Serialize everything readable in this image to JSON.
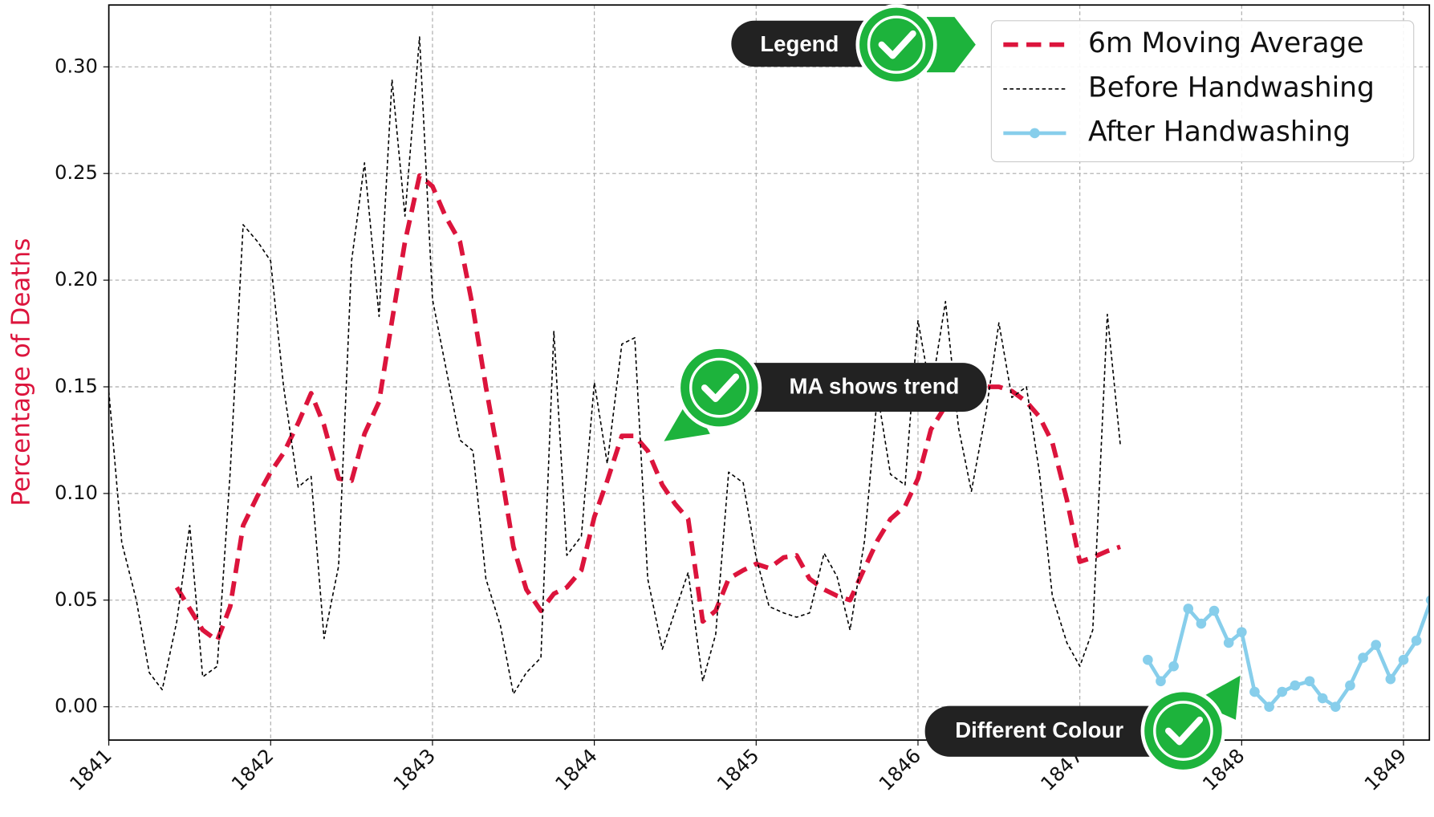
{
  "chart_data": {
    "type": "line",
    "ylabel": "Percentage of Deaths",
    "xlim": [
      1841.0,
      1849.16
    ],
    "ylim": [
      -0.0156,
      0.329
    ],
    "xticks": [
      1841,
      1842,
      1843,
      1844,
      1845,
      1846,
      1847,
      1848,
      1849
    ],
    "yticks": [
      {
        "value": 0,
        "label": "0.00"
      },
      {
        "value": 0.05,
        "label": "0.05"
      },
      {
        "value": 0.1,
        "label": "0.10"
      },
      {
        "value": 0.15,
        "label": "0.15"
      },
      {
        "value": 0.2,
        "label": "0.20"
      },
      {
        "value": 0.25,
        "label": "0.25"
      },
      {
        "value": 0.3,
        "label": "0.30"
      }
    ],
    "grid": true,
    "legend": "upper right",
    "series": [
      {
        "name": "6m Moving Average",
        "color": "#dc143c",
        "style": "dashed",
        "x": [
          1841.42,
          1841.5,
          1841.58,
          1841.67,
          1841.75,
          1841.83,
          1841.92,
          1842.0,
          1842.08,
          1842.17,
          1842.25,
          1842.33,
          1842.42,
          1842.5,
          1842.58,
          1842.67,
          1842.75,
          1842.83,
          1842.92,
          1843.0,
          1843.08,
          1843.17,
          1843.25,
          1843.33,
          1843.42,
          1843.5,
          1843.58,
          1843.67,
          1843.75,
          1843.83,
          1843.92,
          1844.0,
          1844.08,
          1844.17,
          1844.25,
          1844.33,
          1844.42,
          1844.5,
          1844.58,
          1844.67,
          1844.75,
          1844.83,
          1844.92,
          1845.0,
          1845.08,
          1845.17,
          1845.25,
          1845.33,
          1845.42,
          1845.5,
          1845.58,
          1845.67,
          1845.75,
          1845.83,
          1845.92,
          1846.0,
          1846.08,
          1846.17,
          1846.25,
          1846.33,
          1846.42,
          1846.5,
          1846.58,
          1846.67,
          1846.75,
          1846.83,
          1846.92,
          1847.0,
          1847.08,
          1847.17,
          1847.25
        ],
        "values": [
          0.056,
          0.046,
          0.036,
          0.031,
          0.047,
          0.085,
          0.099,
          0.11,
          0.119,
          0.133,
          0.147,
          0.132,
          0.107,
          0.106,
          0.128,
          0.143,
          0.181,
          0.218,
          0.249,
          0.244,
          0.23,
          0.218,
          0.187,
          0.15,
          0.112,
          0.075,
          0.055,
          0.045,
          0.053,
          0.056,
          0.064,
          0.089,
          0.106,
          0.127,
          0.127,
          0.12,
          0.104,
          0.095,
          0.088,
          0.04,
          0.045,
          0.06,
          0.064,
          0.067,
          0.065,
          0.07,
          0.071,
          0.06,
          0.055,
          0.052,
          0.05,
          0.065,
          0.078,
          0.088,
          0.094,
          0.107,
          0.13,
          0.141,
          0.15,
          0.149,
          0.15,
          0.15,
          0.148,
          0.143,
          0.136,
          0.124,
          0.097,
          0.068,
          0.07,
          0.073,
          0.075
        ]
      },
      {
        "name": "Before Handwashing",
        "color": "#000000",
        "style": "thin-dashed",
        "x": [
          1841.0,
          1841.08,
          1841.17,
          1841.25,
          1841.33,
          1841.42,
          1841.5,
          1841.58,
          1841.67,
          1841.75,
          1841.83,
          1841.92,
          1842.0,
          1842.08,
          1842.17,
          1842.25,
          1842.33,
          1842.42,
          1842.5,
          1842.58,
          1842.67,
          1842.75,
          1842.83,
          1842.92,
          1843.0,
          1843.08,
          1843.17,
          1843.25,
          1843.33,
          1843.42,
          1843.5,
          1843.58,
          1843.67,
          1843.75,
          1843.83,
          1843.92,
          1844.0,
          1844.08,
          1844.17,
          1844.25,
          1844.33,
          1844.42,
          1844.5,
          1844.58,
          1844.67,
          1844.75,
          1844.83,
          1844.92,
          1845.0,
          1845.08,
          1845.17,
          1845.25,
          1845.33,
          1845.42,
          1845.5,
          1845.58,
          1845.67,
          1845.75,
          1845.83,
          1845.92,
          1846.0,
          1846.08,
          1846.17,
          1846.25,
          1846.33,
          1846.42,
          1846.5,
          1846.58,
          1846.67,
          1846.75,
          1846.83,
          1846.92,
          1847.0,
          1847.08,
          1847.17,
          1847.25
        ],
        "values": [
          0.148,
          0.077,
          0.05,
          0.016,
          0.008,
          0.04,
          0.085,
          0.014,
          0.019,
          0.11,
          0.226,
          0.218,
          0.209,
          0.15,
          0.103,
          0.108,
          0.032,
          0.066,
          0.209,
          0.255,
          0.183,
          0.294,
          0.23,
          0.314,
          0.191,
          0.16,
          0.125,
          0.12,
          0.06,
          0.038,
          0.006,
          0.016,
          0.023,
          0.176,
          0.071,
          0.08,
          0.152,
          0.114,
          0.17,
          0.173,
          0.06,
          0.027,
          0.045,
          0.063,
          0.012,
          0.034,
          0.11,
          0.105,
          0.07,
          0.047,
          0.044,
          0.042,
          0.044,
          0.072,
          0.061,
          0.036,
          0.078,
          0.147,
          0.109,
          0.104,
          0.181,
          0.147,
          0.19,
          0.131,
          0.101,
          0.138,
          0.18,
          0.145,
          0.15,
          0.11,
          0.052,
          0.03,
          0.019,
          0.036,
          0.184,
          0.123
        ]
      },
      {
        "name": "After Handwashing",
        "color": "#87ceeb",
        "style": "solid-markers",
        "x": [
          1847.42,
          1847.5,
          1847.58,
          1847.67,
          1847.75,
          1847.83,
          1847.92,
          1848.0,
          1848.08,
          1848.17,
          1848.25,
          1848.33,
          1848.42,
          1848.5,
          1848.58,
          1848.67,
          1848.75,
          1848.83,
          1848.92,
          1849.0,
          1849.08,
          1849.17
        ],
        "values": [
          0.022,
          0.012,
          0.019,
          0.046,
          0.039,
          0.045,
          0.03,
          0.035,
          0.007,
          0.0,
          0.007,
          0.01,
          0.012,
          0.004,
          0.0,
          0.01,
          0.023,
          0.029,
          0.013,
          0.022,
          0.031,
          0.05
        ]
      }
    ],
    "annotations": [
      "Legend",
      "MA shows trend",
      "Different Colour"
    ]
  }
}
